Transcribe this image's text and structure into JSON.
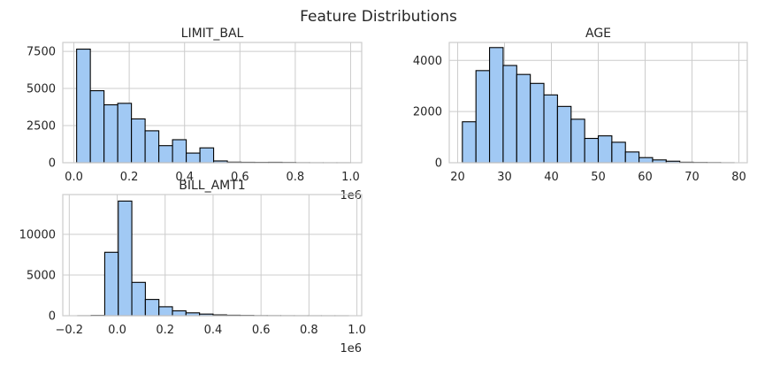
{
  "suptitle": "Feature Distributions",
  "colors": {
    "bar_fill": "#a1c9f4",
    "bar_edge": "#000000",
    "grid": "#cccccc",
    "text": "#262626"
  },
  "chart_data": [
    {
      "type": "bar",
      "title": "LIMIT_BAL",
      "xlabel": "",
      "ylabel": "",
      "x_offset_label": "1e6",
      "xlim": [
        -0.04,
        1.04
      ],
      "ylim": [
        0,
        8100
      ],
      "xticks": [
        0.0,
        0.2,
        0.4,
        0.6,
        0.8,
        1.0
      ],
      "xtick_labels": [
        "0.0",
        "0.2",
        "0.4",
        "0.6",
        "0.8",
        "1.0"
      ],
      "yticks": [
        0,
        2500,
        5000,
        7500
      ],
      "ytick_labels": [
        "0",
        "2500",
        "5000",
        "7500"
      ],
      "grid": true,
      "bin_edges": [
        0.01,
        0.0595,
        0.109,
        0.1585,
        0.208,
        0.2575,
        0.307,
        0.3565,
        0.406,
        0.4555,
        0.505,
        0.5545,
        0.604,
        0.6535,
        0.703,
        0.7525,
        0.802,
        0.8515,
        0.901,
        0.9505,
        1.0
      ],
      "values": [
        7650,
        4850,
        3900,
        4000,
        2950,
        2150,
        1150,
        1550,
        650,
        1000,
        120,
        40,
        30,
        25,
        30,
        20,
        5,
        2,
        1,
        1
      ]
    },
    {
      "type": "bar",
      "title": "AGE",
      "xlabel": "",
      "ylabel": "",
      "xlim": [
        18.2,
        81.8
      ],
      "ylim": [
        0,
        4700
      ],
      "xticks": [
        20,
        30,
        40,
        50,
        60,
        70,
        80
      ],
      "xtick_labels": [
        "20",
        "30",
        "40",
        "50",
        "60",
        "70",
        "80"
      ],
      "yticks": [
        0,
        2000,
        4000
      ],
      "ytick_labels": [
        "0",
        "2000",
        "4000"
      ],
      "grid": true,
      "bin_edges": [
        21.0,
        23.9,
        26.8,
        29.7,
        32.6,
        35.5,
        38.4,
        41.3,
        44.2,
        47.1,
        50.0,
        52.9,
        55.8,
        58.7,
        61.6,
        64.5,
        67.4,
        70.3,
        73.2,
        76.1,
        79.0
      ],
      "values": [
        1600,
        3600,
        4500,
        3800,
        3450,
        3100,
        2650,
        2200,
        1700,
        950,
        1050,
        800,
        420,
        200,
        110,
        60,
        20,
        12,
        8,
        2
      ]
    },
    {
      "type": "bar",
      "title": "BILL_AMT1",
      "xlabel": "",
      "ylabel": "",
      "x_offset_label": "1e6",
      "xlim": [
        -0.227,
        1.02
      ],
      "ylim": [
        0,
        14900
      ],
      "xticks": [
        -0.2,
        0.0,
        0.2,
        0.4,
        0.6,
        0.8,
        1.0
      ],
      "xtick_labels": [
        "−0.2",
        "0.0",
        "0.2",
        "0.4",
        "0.6",
        "0.8",
        "1.0"
      ],
      "yticks": [
        0,
        5000,
        10000
      ],
      "ytick_labels": [
        "0",
        "5000",
        "10000"
      ],
      "grid": true,
      "bin_edges": [
        -0.165,
        -0.1085,
        -0.052,
        0.0045,
        0.061,
        0.1175,
        0.174,
        0.2305,
        0.287,
        0.3435,
        0.4,
        0.4565,
        0.513,
        0.5695,
        0.626,
        0.6825,
        0.739,
        0.7955,
        0.852,
        0.9085,
        0.965
      ],
      "values": [
        5,
        40,
        7800,
        14100,
        4100,
        2000,
        1100,
        600,
        350,
        200,
        100,
        60,
        40,
        15,
        10,
        5,
        3,
        2,
        1,
        1
      ]
    }
  ]
}
